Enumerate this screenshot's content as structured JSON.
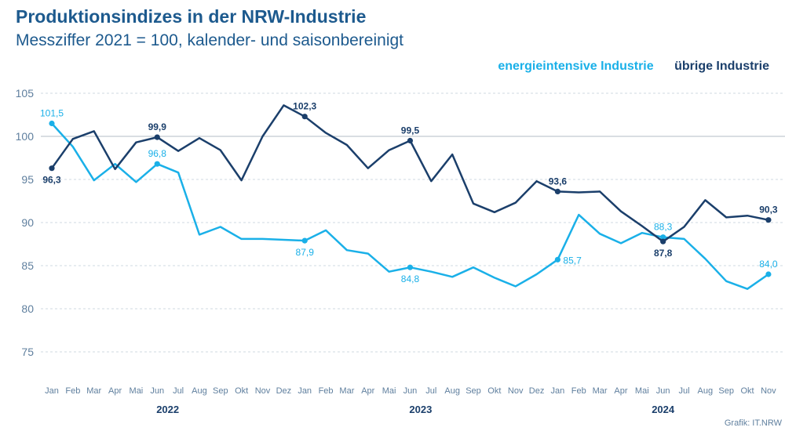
{
  "title": "Produktionsindizes in der NRW-Industrie",
  "subtitle": "Messziffer 2021 = 100, kalender- und saisonbereinigt",
  "source": "Grafik: IT.NRW",
  "colors": {
    "energy": "#1ab0e8",
    "other": "#1b3f6b",
    "grid": "#cfd8e0",
    "axis_text": "#5f7f9e",
    "baseline": "#b3bcc6"
  },
  "chart_data": {
    "type": "line",
    "ylim": [
      75,
      105
    ],
    "yticks": [
      75,
      80,
      85,
      90,
      95,
      100,
      105
    ],
    "grid": true,
    "legend_position": "top-right",
    "x": [
      "Jan",
      "Feb",
      "Mar",
      "Apr",
      "Mai",
      "Jun",
      "Jul",
      "Aug",
      "Sep",
      "Okt",
      "Nov",
      "Dez",
      "Jan",
      "Feb",
      "Mar",
      "Apr",
      "Mai",
      "Jun",
      "Jul",
      "Aug",
      "Sep",
      "Okt",
      "Nov",
      "Dez",
      "Jan",
      "Feb",
      "Mar",
      "Apr",
      "Mai",
      "Jun",
      "Jul",
      "Aug",
      "Sep",
      "Okt",
      "Nov"
    ],
    "years": [
      {
        "label": "2022",
        "start": 0,
        "end": 11
      },
      {
        "label": "2023",
        "start": 12,
        "end": 23
      },
      {
        "label": "2024",
        "start": 24,
        "end": 34
      }
    ],
    "series": [
      {
        "name": "energieintensive Industrie",
        "key": "energy",
        "values": [
          101.5,
          98.8,
          94.9,
          96.8,
          94.7,
          96.8,
          95.8,
          88.6,
          89.5,
          88.1,
          88.1,
          88.0,
          87.9,
          89.1,
          86.8,
          86.4,
          84.3,
          84.8,
          84.3,
          83.7,
          84.8,
          83.6,
          82.6,
          84.0,
          85.7,
          90.9,
          88.7,
          87.6,
          88.8,
          88.3,
          88.1,
          85.8,
          83.2,
          82.3,
          84.0
        ],
        "labels": [
          {
            "index": 0,
            "text": "101,5",
            "pos": "above"
          },
          {
            "index": 5,
            "text": "96,8",
            "pos": "above"
          },
          {
            "index": 12,
            "text": "87,9",
            "pos": "below"
          },
          {
            "index": 17,
            "text": "84,8",
            "pos": "below"
          },
          {
            "index": 24,
            "text": "85,7",
            "pos": "right"
          },
          {
            "index": 29,
            "text": "88,3",
            "pos": "above"
          },
          {
            "index": 34,
            "text": "84,0",
            "pos": "above"
          }
        ]
      },
      {
        "name": "übrige Industrie",
        "key": "other",
        "values": [
          96.3,
          99.7,
          100.6,
          96.2,
          99.3,
          99.9,
          98.3,
          99.8,
          98.4,
          94.9,
          100.0,
          103.6,
          102.3,
          100.4,
          99.0,
          96.3,
          98.4,
          99.5,
          94.8,
          97.9,
          92.2,
          91.2,
          92.3,
          94.8,
          93.6,
          93.5,
          93.6,
          91.3,
          89.6,
          87.8,
          89.5,
          92.6,
          90.6,
          90.8,
          90.3
        ],
        "labels": [
          {
            "index": 0,
            "text": "96,3",
            "pos": "below"
          },
          {
            "index": 5,
            "text": "99,9",
            "pos": "above"
          },
          {
            "index": 12,
            "text": "102,3",
            "pos": "above"
          },
          {
            "index": 17,
            "text": "99,5",
            "pos": "above"
          },
          {
            "index": 24,
            "text": "93,6",
            "pos": "above"
          },
          {
            "index": 29,
            "text": "87,8",
            "pos": "below"
          },
          {
            "index": 34,
            "text": "90,3",
            "pos": "above"
          }
        ]
      }
    ]
  }
}
